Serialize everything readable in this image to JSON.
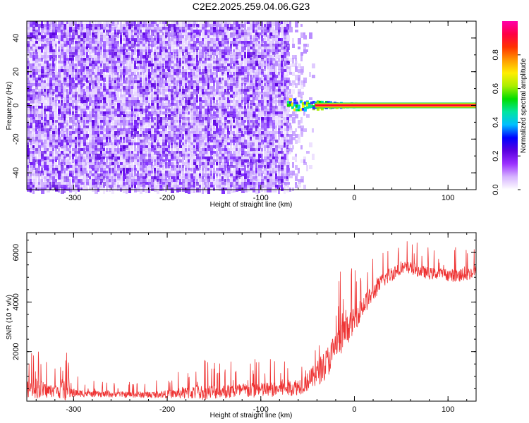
{
  "figure_title": "C2E2.2025.259.04.06.G23",
  "chart_data": [
    {
      "type": "heatmap",
      "xlabel": "Height of straight line (km)",
      "ylabel": "Frequency (Hz)",
      "xlim": [
        -350,
        130
      ],
      "ylim": [
        -50,
        50
      ],
      "x_ticks": [
        -300,
        -200,
        -100,
        0,
        100
      ],
      "y_ticks": [
        -40,
        -20,
        0,
        20,
        40
      ],
      "noise_region_x": [
        -350,
        -70
      ],
      "noise_fade_x": [
        -70,
        -45
      ],
      "signal_line": {
        "x_start": -72,
        "x_end": 130,
        "frequency": 0
      },
      "colorbar": {
        "label": "Normalized spectral amplitude",
        "range": [
          0.0,
          1.0
        ],
        "ticks": [
          "0.0",
          "0.2",
          "0.4",
          "0.6",
          "0.8"
        ],
        "colors": [
          "#ffffff",
          "#d6b3ff",
          "#9b30ff",
          "#5a00e0",
          "#0000ff",
          "#00bfff",
          "#00e5a0",
          "#00dd00",
          "#aaee00",
          "#ffee00",
          "#ff9900",
          "#ff3300",
          "#ff0044",
          "#ff00aa"
        ]
      }
    },
    {
      "type": "line",
      "xlabel": "Height of straight line (km)",
      "ylabel": "SNR (10 * v/v)",
      "xlim": [
        -350,
        130
      ],
      "ylim": [
        0,
        6800
      ],
      "x_ticks": [
        -300,
        -200,
        -100,
        0,
        100
      ],
      "y_ticks": [
        2000,
        4000,
        6000
      ],
      "color": "#ee3333",
      "envelope": {
        "x": [
          -350,
          -340,
          -330,
          -320,
          -310,
          -300,
          -290,
          -280,
          -260,
          -240,
          -220,
          -200,
          -180,
          -160,
          -140,
          -120,
          -100,
          -80,
          -60,
          -50,
          -40,
          -30,
          -20,
          -10,
          0,
          10,
          20,
          30,
          40,
          50,
          60,
          70,
          80,
          90,
          100,
          110,
          120,
          130
        ],
        "base": [
          400,
          450,
          350,
          380,
          350,
          300,
          280,
          260,
          250,
          240,
          230,
          250,
          280,
          300,
          330,
          360,
          380,
          420,
          520,
          700,
          1000,
          1400,
          2000,
          2600,
          3200,
          3800,
          4300,
          4800,
          5100,
          5300,
          5300,
          5200,
          5100,
          5100,
          5050,
          5000,
          5050,
          5200
        ],
        "noise": [
          900,
          1200,
          900,
          700,
          1200,
          500,
          400,
          350,
          350,
          350,
          400,
          450,
          700,
          900,
          800,
          900,
          900,
          900,
          1000,
          1100,
          1500,
          1800,
          2000,
          1800,
          1400,
          1200,
          1000,
          900,
          900,
          900,
          800,
          700,
          700,
          650,
          700,
          800,
          800,
          700
        ]
      }
    }
  ]
}
